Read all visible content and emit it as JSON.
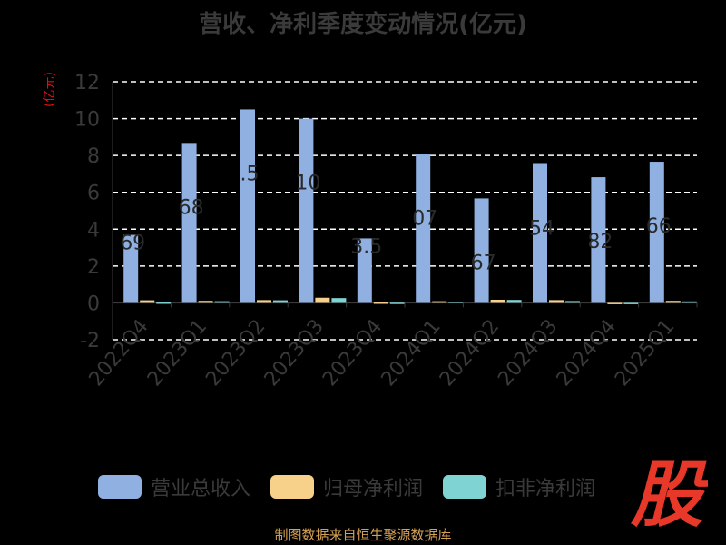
{
  "chart_data": {
    "type": "bar",
    "title": "营收、净利季度变动情况(亿元)",
    "ylabel": "(亿元)",
    "xlabel": "",
    "ylim": [
      -2,
      12
    ],
    "yticks": [
      -2,
      0,
      2,
      4,
      6,
      8,
      10,
      12
    ],
    "categories": [
      "2022Q4",
      "2023Q1",
      "2023Q2",
      "2023Q3",
      "2023Q4",
      "2024Q1",
      "2024Q2",
      "2024Q3",
      "2024Q4",
      "2025Q1"
    ],
    "series": [
      {
        "name": "营业总收入",
        "color": "#8fb0e0",
        "values": [
          3.69,
          8.68,
          10.5,
          10.0,
          3.5,
          8.07,
          5.67,
          7.54,
          6.82,
          7.66
        ]
      },
      {
        "name": "归母净利润",
        "color": "#f7d08a",
        "values": [
          0.14,
          0.11,
          0.15,
          0.28,
          0.02,
          0.09,
          0.17,
          0.15,
          -0.07,
          0.11
        ]
      },
      {
        "name": "扣非净利润",
        "color": "#7fd3d3",
        "values": [
          0.02,
          0.09,
          0.14,
          0.26,
          0.01,
          0.07,
          0.16,
          0.1,
          -0.05,
          0.08
        ]
      }
    ],
    "data_labels": [
      "69",
      "68",
      ".5",
      "10",
      "3.5",
      "07",
      "67",
      "54",
      "82",
      "66"
    ],
    "grid": true,
    "legend": "bottom"
  },
  "source_text": "制图数据来自恒生聚源数据库",
  "logo_text": "股",
  "colors": {
    "label_dark": "#3a3a3a",
    "ylabel": "#e01010",
    "source": "#d4a054",
    "logo": "#e8382a"
  }
}
